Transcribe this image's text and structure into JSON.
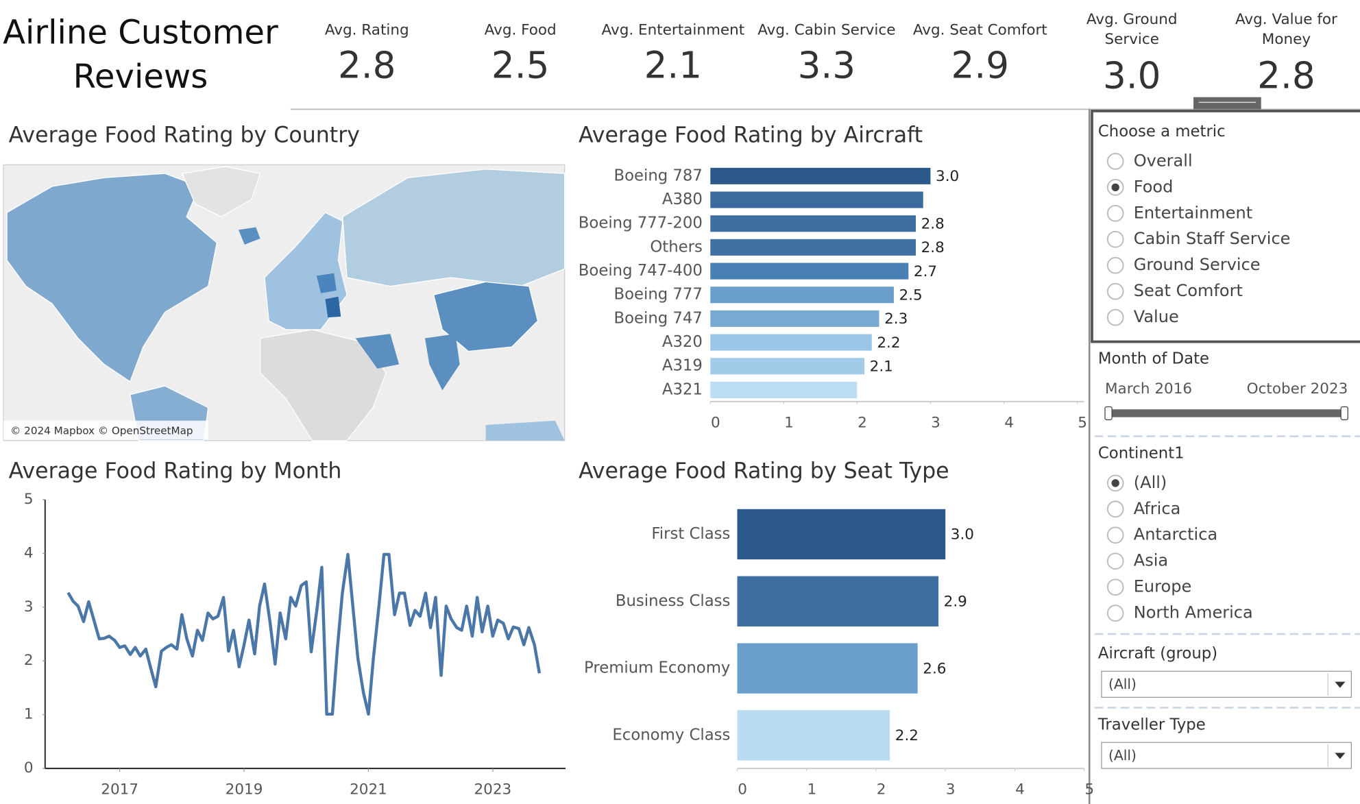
{
  "header": {
    "title_lines": [
      "Airline Customer",
      "Reviews"
    ]
  },
  "kpis": [
    {
      "lines": [
        "Avg. Rating"
      ],
      "value": "2.8"
    },
    {
      "lines": [
        "Avg. Food"
      ],
      "value": "2.5"
    },
    {
      "lines": [
        "Avg. Entertainment"
      ],
      "value": "2.1"
    },
    {
      "lines": [
        "Avg. Cabin Service"
      ],
      "value": "3.3"
    },
    {
      "lines": [
        "Avg. Seat Comfort"
      ],
      "value": "2.9"
    },
    {
      "lines": [
        "Avg. Ground",
        "Service"
      ],
      "value": "3.0"
    },
    {
      "lines": [
        "Avg. Value for",
        "Money"
      ],
      "value": "2.8"
    }
  ],
  "chart_data": [
    {
      "type": "map",
      "title": "Average Food Rating by Country",
      "attribution": "© 2024 Mapbox © OpenStreetMap"
    },
    {
      "type": "bar",
      "orientation": "horizontal",
      "title": "Average Food Rating by Aircraft",
      "categories": [
        "Boeing 787",
        "A380",
        "Boeing 777-200",
        "Others",
        "Boeing 747-400",
        "Boeing 777",
        "Boeing 747",
        "A320",
        "A319",
        "A321"
      ],
      "values": [
        3.0,
        2.9,
        2.8,
        2.8,
        2.7,
        2.5,
        2.3,
        2.2,
        2.1,
        2.0
      ],
      "value_labels": [
        "3.0",
        null,
        "2.8",
        "2.8",
        "2.7",
        "2.5",
        "2.3",
        "2.2",
        "2.1",
        null
      ],
      "colors": [
        "#2b5a8a",
        "#3a6a9e",
        "#3d6fa3",
        "#3f71a5",
        "#4a7fb3",
        "#6b9fcb",
        "#77a9d2",
        "#9ac5e6",
        "#a2cbea",
        "#bbdcf2"
      ],
      "xlim": [
        0,
        5
      ],
      "xticks": [
        0,
        1,
        2,
        3,
        4,
        5
      ]
    },
    {
      "type": "line",
      "title": "Average Food Rating by Month",
      "color": "#4a77a8",
      "x": [
        2016.17,
        2016.25,
        2016.33,
        2016.42,
        2016.5,
        2016.58,
        2016.67,
        2016.75,
        2016.83,
        2016.92,
        2017.0,
        2017.08,
        2017.17,
        2017.25,
        2017.33,
        2017.42,
        2017.5,
        2017.58,
        2017.67,
        2017.75,
        2017.83,
        2017.92,
        2018.0,
        2018.08,
        2018.17,
        2018.25,
        2018.33,
        2018.42,
        2018.5,
        2018.58,
        2018.67,
        2018.75,
        2018.83,
        2018.92,
        2019.0,
        2019.08,
        2019.17,
        2019.25,
        2019.33,
        2019.42,
        2019.5,
        2019.58,
        2019.67,
        2019.75,
        2019.83,
        2019.92,
        2020.0,
        2020.08,
        2020.17,
        2020.25,
        2020.33,
        2020.42,
        2020.5,
        2020.58,
        2020.67,
        2020.75,
        2020.83,
        2020.92,
        2021.0,
        2021.08,
        2021.17,
        2021.25,
        2021.33,
        2021.42,
        2021.5,
        2021.58,
        2021.67,
        2021.75,
        2021.83,
        2021.92,
        2022.0,
        2022.08,
        2022.17,
        2022.25,
        2022.33,
        2022.42,
        2022.5,
        2022.58,
        2022.67,
        2022.75,
        2022.83,
        2022.92,
        2023.0,
        2023.08,
        2023.17,
        2023.25,
        2023.33,
        2023.42,
        2023.5,
        2023.58,
        2023.67,
        2023.75
      ],
      "values": [
        3.27,
        3.11,
        3.02,
        2.73,
        3.1,
        2.78,
        2.41,
        2.42,
        2.46,
        2.38,
        2.25,
        2.28,
        2.12,
        2.25,
        2.09,
        2.22,
        1.86,
        1.52,
        2.18,
        2.25,
        2.3,
        2.22,
        2.86,
        2.41,
        2.09,
        2.57,
        2.38,
        2.89,
        2.78,
        2.83,
        3.18,
        2.18,
        2.57,
        1.89,
        2.3,
        2.76,
        2.13,
        3.02,
        3.43,
        2.7,
        1.94,
        2.89,
        2.41,
        3.18,
        3.02,
        3.4,
        3.47,
        2.17,
        2.94,
        3.74,
        1.01,
        1.01,
        2.22,
        3.26,
        3.98,
        3.02,
        2.05,
        1.41,
        1.01,
        2.05,
        3.02,
        3.98,
        3.98,
        2.86,
        3.26,
        3.26,
        2.66,
        2.94,
        2.83,
        3.26,
        2.62,
        3.18,
        1.73,
        3.02,
        2.78,
        2.62,
        2.57,
        3.02,
        2.46,
        3.18,
        2.54,
        3.02,
        2.46,
        2.76,
        2.7,
        2.41,
        2.63,
        2.6,
        2.3,
        2.62,
        2.3,
        1.77
      ],
      "xlim": [
        2015.8,
        2024.17
      ],
      "xticks": [
        2017,
        2019,
        2021,
        2023
      ],
      "ylim": [
        0,
        5
      ],
      "yticks": [
        0,
        1,
        2,
        3,
        4,
        5
      ]
    },
    {
      "type": "bar",
      "orientation": "horizontal",
      "title": "Average Food Rating by Seat Type",
      "categories": [
        "First Class",
        "Business Class",
        "Premium Economy",
        "Economy Class"
      ],
      "values": [
        3.0,
        2.9,
        2.6,
        2.2
      ],
      "value_labels": [
        "3.0",
        "2.9",
        "2.6",
        "2.2"
      ],
      "colors": [
        "#2b5a8a",
        "#3e6fa0",
        "#6a9fcb",
        "#b9dcf2"
      ],
      "xlim": [
        0,
        5
      ],
      "xticks": [
        0,
        1,
        2,
        3,
        4,
        5
      ]
    }
  ],
  "filters": {
    "metric": {
      "title": "Choose a metric",
      "options": [
        "Overall",
        "Food",
        "Entertainment",
        "Cabin Staff Service",
        "Ground Service",
        "Seat Comfort",
        "Value"
      ],
      "selected_index": 1
    },
    "date": {
      "title": "Month of Date",
      "start": "March 2016",
      "end": "October 2023"
    },
    "continent": {
      "title": "Continent1",
      "options": [
        "(All)",
        "Africa",
        "Antarctica",
        "Asia",
        "Europe",
        "North America"
      ],
      "selected_index": 0
    },
    "aircraft": {
      "title": "Aircraft (group)",
      "value": "(All)"
    },
    "traveller": {
      "title": "Traveller Type",
      "value": "(All)"
    }
  }
}
